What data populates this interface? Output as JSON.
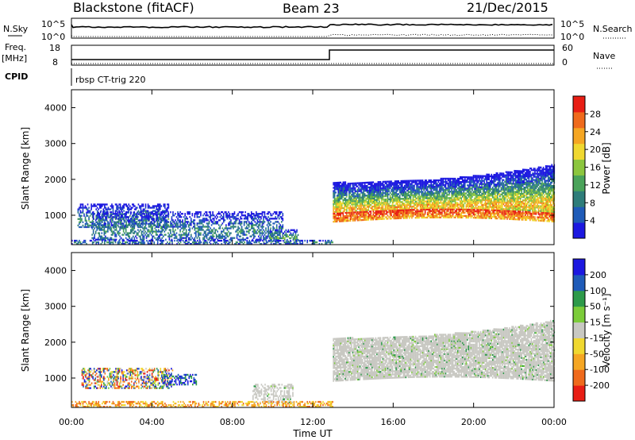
{
  "header": {
    "station": "Blackstone (fitACF)",
    "beam": "Beam 23",
    "date": "21/Dec/2015"
  },
  "status_panel": {
    "nsky_label": "N.Sky",
    "nsearch_label": "N.Search",
    "noise_ticks": [
      "10^5",
      "10^0"
    ],
    "freq_label": "Freq.",
    "freq_unit": "[MHz]",
    "freq_ticks": [
      "18",
      "8"
    ],
    "nave_label": "Nave",
    "nave_ticks": [
      "60",
      "0"
    ],
    "cpid_label": "CPID",
    "cpid_value": "rbsp CT-trig 220"
  },
  "chart_data": [
    {
      "type": "heatmap",
      "title": "",
      "xlabel": "Time UT",
      "ylabel": "Slant Range [km]",
      "x_ticks": [
        "00:00",
        "04:00",
        "08:00",
        "12:00",
        "16:00",
        "20:00",
        "00:00"
      ],
      "xlim": [
        0,
        24
      ],
      "y_ticks": [
        "1000",
        "2000",
        "3000",
        "4000"
      ],
      "ylim": [
        180,
        4500
      ],
      "colorbar": {
        "label": "Power [dB]",
        "ticks": [
          "4",
          "8",
          "12",
          "16",
          "20",
          "24",
          "28"
        ],
        "range": [
          0,
          32
        ],
        "colors": [
          "#1c18e0",
          "#1f5bb8",
          "#2e7d7a",
          "#4aa35a",
          "#8cc63e",
          "#f0d830",
          "#f5a623",
          "#ef6a1c",
          "#e81e14"
        ]
      },
      "echo_regions": [
        {
          "t0": 0.3,
          "t1": 4.8,
          "r_low": 650,
          "r_high": 1300,
          "level": 0.35
        },
        {
          "t0": 1.0,
          "t1": 10.5,
          "r_low": 300,
          "r_high": 1100,
          "level": 0.3
        },
        {
          "t0": 9.8,
          "t1": 11.3,
          "r_low": 250,
          "r_high": 600,
          "level": 0.45
        },
        {
          "t0": 0.0,
          "t1": 13.0,
          "r_low": 180,
          "r_high": 300,
          "level": 0.3
        },
        {
          "t0": 13.0,
          "t1": 24.0,
          "r_low": 800,
          "r_high": 1900,
          "level": 0.7
        }
      ]
    },
    {
      "type": "heatmap",
      "title": "",
      "xlabel": "Time UT",
      "ylabel": "Slant Range [km]",
      "x_ticks": [
        "00:00",
        "04:00",
        "08:00",
        "12:00",
        "16:00",
        "20:00",
        "00:00"
      ],
      "xlim": [
        0,
        24
      ],
      "y_ticks": [
        "1000",
        "2000",
        "3000",
        "4000"
      ],
      "ylim": [
        180,
        4500
      ],
      "colorbar": {
        "label": "Velocity [m s⁻¹]",
        "ticks": [
          "200",
          "100",
          "50",
          "15",
          "-15",
          "-50",
          "-100",
          "-200"
        ],
        "range": [
          -250,
          250
        ],
        "colors": [
          "#e81e14",
          "#ef6a1c",
          "#f5a623",
          "#f0d830",
          "#c8c8c2",
          "#7ccc3a",
          "#2e9a4a",
          "#1f5bb8",
          "#1c18e0"
        ]
      },
      "echo_regions": [
        {
          "t0": 0.5,
          "t1": 5.0,
          "r_low": 700,
          "r_high": 1250,
          "class": "mixed"
        },
        {
          "t0": 4.5,
          "t1": 6.2,
          "r_low": 800,
          "r_high": 1100,
          "class": "toward"
        },
        {
          "t0": 9.0,
          "t1": 11.0,
          "r_low": 300,
          "r_high": 800,
          "class": "ground"
        },
        {
          "t0": 0.0,
          "t1": 13.0,
          "r_low": 180,
          "r_high": 350,
          "class": "away"
        },
        {
          "t0": 13.0,
          "t1": 24.0,
          "r_low": 900,
          "r_high": 2100,
          "class": "ground"
        }
      ]
    }
  ]
}
